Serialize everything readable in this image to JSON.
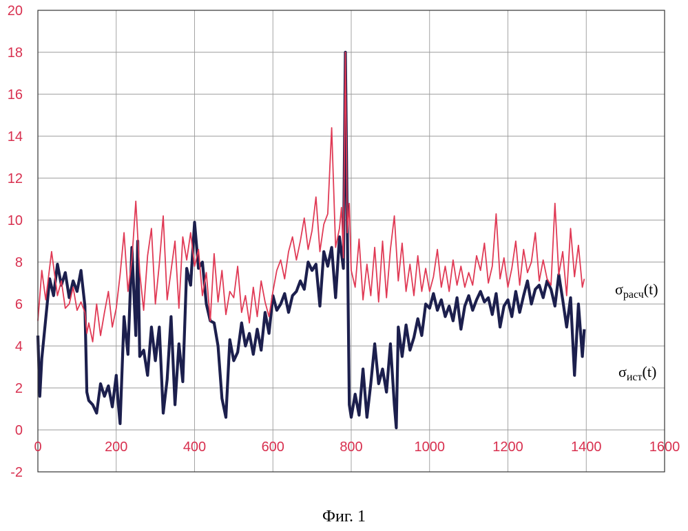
{
  "chart_data": {
    "type": "line",
    "title": "",
    "xlabel": "",
    "ylabel": "",
    "xlim": [
      0,
      1600
    ],
    "ylim": [
      -2,
      20
    ],
    "x_ticks": [
      0,
      200,
      400,
      600,
      800,
      1000,
      1200,
      1400,
      1600
    ],
    "y_ticks": [
      -2,
      0,
      2,
      4,
      6,
      8,
      10,
      12,
      14,
      16,
      18,
      20
    ],
    "grid": true,
    "tick_color": "#d8304f",
    "series": [
      {
        "name": "σрасч(t)",
        "color": "#e03a55",
        "x": [
          0,
          10,
          20,
          35,
          50,
          60,
          70,
          80,
          90,
          100,
          110,
          120,
          125,
          130,
          140,
          150,
          160,
          170,
          180,
          190,
          200,
          210,
          220,
          230,
          240,
          250,
          260,
          270,
          280,
          290,
          300,
          310,
          320,
          330,
          340,
          350,
          360,
          370,
          380,
          390,
          400,
          410,
          420,
          430,
          440,
          450,
          460,
          470,
          480,
          490,
          500,
          510,
          520,
          530,
          540,
          550,
          560,
          570,
          580,
          590,
          600,
          610,
          620,
          630,
          640,
          650,
          660,
          670,
          680,
          690,
          700,
          710,
          720,
          730,
          740,
          750,
          760,
          770,
          775,
          780,
          785,
          790,
          795,
          800,
          810,
          820,
          830,
          840,
          850,
          860,
          870,
          880,
          890,
          900,
          910,
          920,
          930,
          940,
          950,
          960,
          970,
          980,
          990,
          1000,
          1010,
          1020,
          1030,
          1040,
          1050,
          1060,
          1070,
          1080,
          1090,
          1100,
          1110,
          1120,
          1130,
          1140,
          1150,
          1160,
          1170,
          1180,
          1190,
          1200,
          1210,
          1220,
          1230,
          1240,
          1250,
          1260,
          1270,
          1280,
          1290,
          1300,
          1310,
          1320,
          1330,
          1340,
          1350,
          1360,
          1370,
          1380,
          1390,
          1395
        ],
        "values": [
          5.2,
          7.6,
          6.2,
          8.5,
          6.4,
          7.1,
          5.8,
          6.0,
          6.8,
          5.7,
          6.1,
          5.6,
          4.6,
          5.1,
          4.2,
          6.0,
          4.5,
          5.6,
          6.6,
          4.9,
          5.8,
          7.4,
          9.4,
          6.6,
          8.1,
          10.9,
          7.5,
          5.7,
          8.3,
          9.6,
          6.0,
          7.9,
          10.2,
          6.2,
          7.6,
          9.0,
          5.8,
          9.2,
          8.1,
          9.4,
          7.8,
          8.6,
          6.4,
          7.5,
          5.2,
          8.4,
          6.1,
          7.6,
          5.5,
          6.6,
          6.3,
          7.8,
          5.6,
          6.4,
          5.1,
          6.8,
          5.4,
          7.1,
          6.1,
          5.4,
          6.6,
          7.6,
          8.1,
          7.2,
          8.5,
          9.2,
          8.1,
          9.0,
          10.1,
          8.6,
          9.5,
          11.1,
          8.5,
          9.8,
          10.3,
          14.4,
          8.7,
          9.6,
          10.6,
          8.2,
          18.0,
          9.4,
          10.8,
          7.6,
          6.8,
          9.1,
          6.2,
          7.9,
          6.4,
          8.7,
          6.1,
          9.0,
          6.3,
          8.6,
          10.2,
          7.1,
          8.9,
          6.6,
          7.9,
          6.4,
          8.3,
          6.6,
          7.7,
          6.6,
          7.3,
          8.6,
          6.8,
          7.8,
          6.6,
          8.1,
          6.9,
          7.8,
          6.8,
          7.5,
          6.9,
          8.3,
          7.6,
          8.9,
          7.0,
          7.8,
          10.3,
          7.2,
          8.2,
          6.8,
          7.7,
          9.0,
          6.9,
          8.6,
          7.5,
          8.0,
          9.4,
          7.1,
          8.1,
          7.2,
          6.9,
          10.8,
          7.4,
          8.5,
          6.4,
          9.6,
          7.3,
          8.8,
          6.8,
          7.2
        ]
      },
      {
        "name": "σист(t)",
        "color": "#1c1f4d",
        "x": [
          0,
          5,
          10,
          20,
          30,
          40,
          50,
          60,
          70,
          80,
          90,
          100,
          110,
          120,
          125,
          130,
          140,
          150,
          160,
          170,
          180,
          190,
          200,
          205,
          210,
          220,
          230,
          240,
          250,
          255,
          260,
          270,
          280,
          290,
          300,
          310,
          320,
          330,
          340,
          350,
          360,
          370,
          380,
          390,
          400,
          410,
          420,
          430,
          440,
          450,
          460,
          470,
          480,
          490,
          500,
          510,
          520,
          530,
          540,
          550,
          560,
          570,
          580,
          590,
          600,
          610,
          620,
          630,
          640,
          650,
          660,
          670,
          680,
          690,
          700,
          710,
          720,
          730,
          740,
          750,
          760,
          770,
          780,
          785,
          790,
          795,
          800,
          810,
          820,
          830,
          840,
          850,
          860,
          870,
          880,
          890,
          900,
          910,
          915,
          920,
          930,
          940,
          950,
          960,
          970,
          980,
          990,
          1000,
          1010,
          1020,
          1030,
          1040,
          1050,
          1060,
          1070,
          1080,
          1090,
          1100,
          1110,
          1120,
          1130,
          1140,
          1150,
          1160,
          1170,
          1180,
          1190,
          1200,
          1210,
          1220,
          1230,
          1240,
          1250,
          1260,
          1270,
          1280,
          1290,
          1300,
          1310,
          1320,
          1330,
          1340,
          1350,
          1360,
          1370,
          1380,
          1390,
          1395
        ],
        "values": [
          4.5,
          1.6,
          3.4,
          5.3,
          7.2,
          6.4,
          7.9,
          6.9,
          7.5,
          6.3,
          7.1,
          6.6,
          7.6,
          5.9,
          1.8,
          1.4,
          1.2,
          0.8,
          2.2,
          1.6,
          2.1,
          1.1,
          2.6,
          1.3,
          0.3,
          5.4,
          3.6,
          8.7,
          4.5,
          9.0,
          3.5,
          3.8,
          2.6,
          4.9,
          3.3,
          4.9,
          0.8,
          2.4,
          5.4,
          1.2,
          4.1,
          2.3,
          7.7,
          6.9,
          9.9,
          7.7,
          8.0,
          6.0,
          5.2,
          5.1,
          4.0,
          1.5,
          0.6,
          4.3,
          3.3,
          3.7,
          5.1,
          4.0,
          4.6,
          3.6,
          4.8,
          3.8,
          5.6,
          4.6,
          6.4,
          5.7,
          6.0,
          6.5,
          5.6,
          6.4,
          6.6,
          7.1,
          6.7,
          8.0,
          7.6,
          7.9,
          5.9,
          8.5,
          7.8,
          8.7,
          6.3,
          9.2,
          7.7,
          18.0,
          9.6,
          1.2,
          0.6,
          1.7,
          0.7,
          2.9,
          0.6,
          2.2,
          4.1,
          2.2,
          2.9,
          1.8,
          4.1,
          1.2,
          0.1,
          4.9,
          3.5,
          5.0,
          3.8,
          4.4,
          5.3,
          4.5,
          6.0,
          5.8,
          6.5,
          5.7,
          6.2,
          5.4,
          5.9,
          5.2,
          6.3,
          4.8,
          5.9,
          6.4,
          5.7,
          6.2,
          6.6,
          6.1,
          6.3,
          5.5,
          6.5,
          4.9,
          5.9,
          6.2,
          5.4,
          6.6,
          5.6,
          6.4,
          7.1,
          6.0,
          6.7,
          6.9,
          6.3,
          7.1,
          6.7,
          5.9,
          7.4,
          6.2,
          4.9,
          6.3,
          2.6,
          6.0,
          3.5,
          4.8
        ]
      }
    ],
    "annotations": {
      "calc_label": "σрасч(t)",
      "calc_base": "σ",
      "calc_sub": "расч",
      "calc_arg": "(t)",
      "true_label": "σист(t)",
      "true_base": "σ",
      "true_sub": "ист",
      "true_arg": "(t)"
    }
  },
  "caption": "Фиг. 1"
}
